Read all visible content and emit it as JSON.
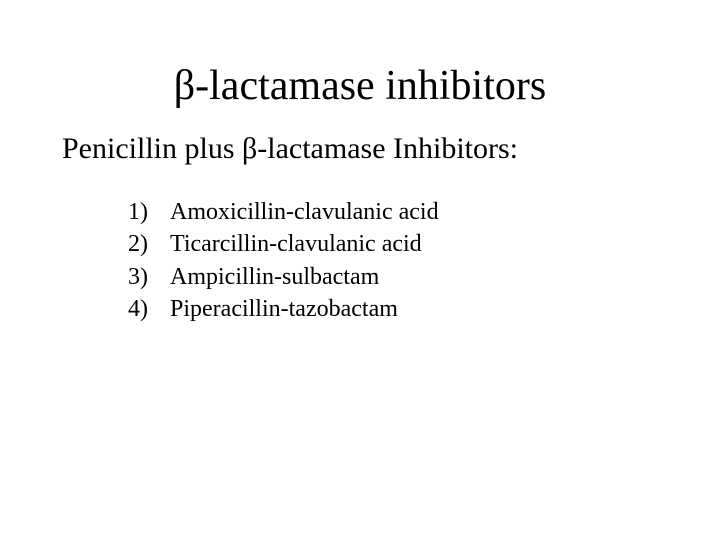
{
  "colors": {
    "background": "#ffffff",
    "text": "#000000"
  },
  "typography": {
    "family": "Times New Roman",
    "title_fontsize": 42,
    "subtitle_fontsize": 30,
    "list_fontsize": 24
  },
  "title": "β-lactamase inhibitors",
  "subtitle": "Penicillin plus β-lactamase Inhibitors:",
  "items": [
    {
      "num": "1)",
      "text": "Amoxicillin-clavulanic acid"
    },
    {
      "num": "2)",
      "text": "Ticarcillin-clavulanic acid"
    },
    {
      "num": "3)",
      "text": "Ampicillin-sulbactam"
    },
    {
      "num": "4)",
      "text": "Piperacillin-tazobactam"
    }
  ]
}
